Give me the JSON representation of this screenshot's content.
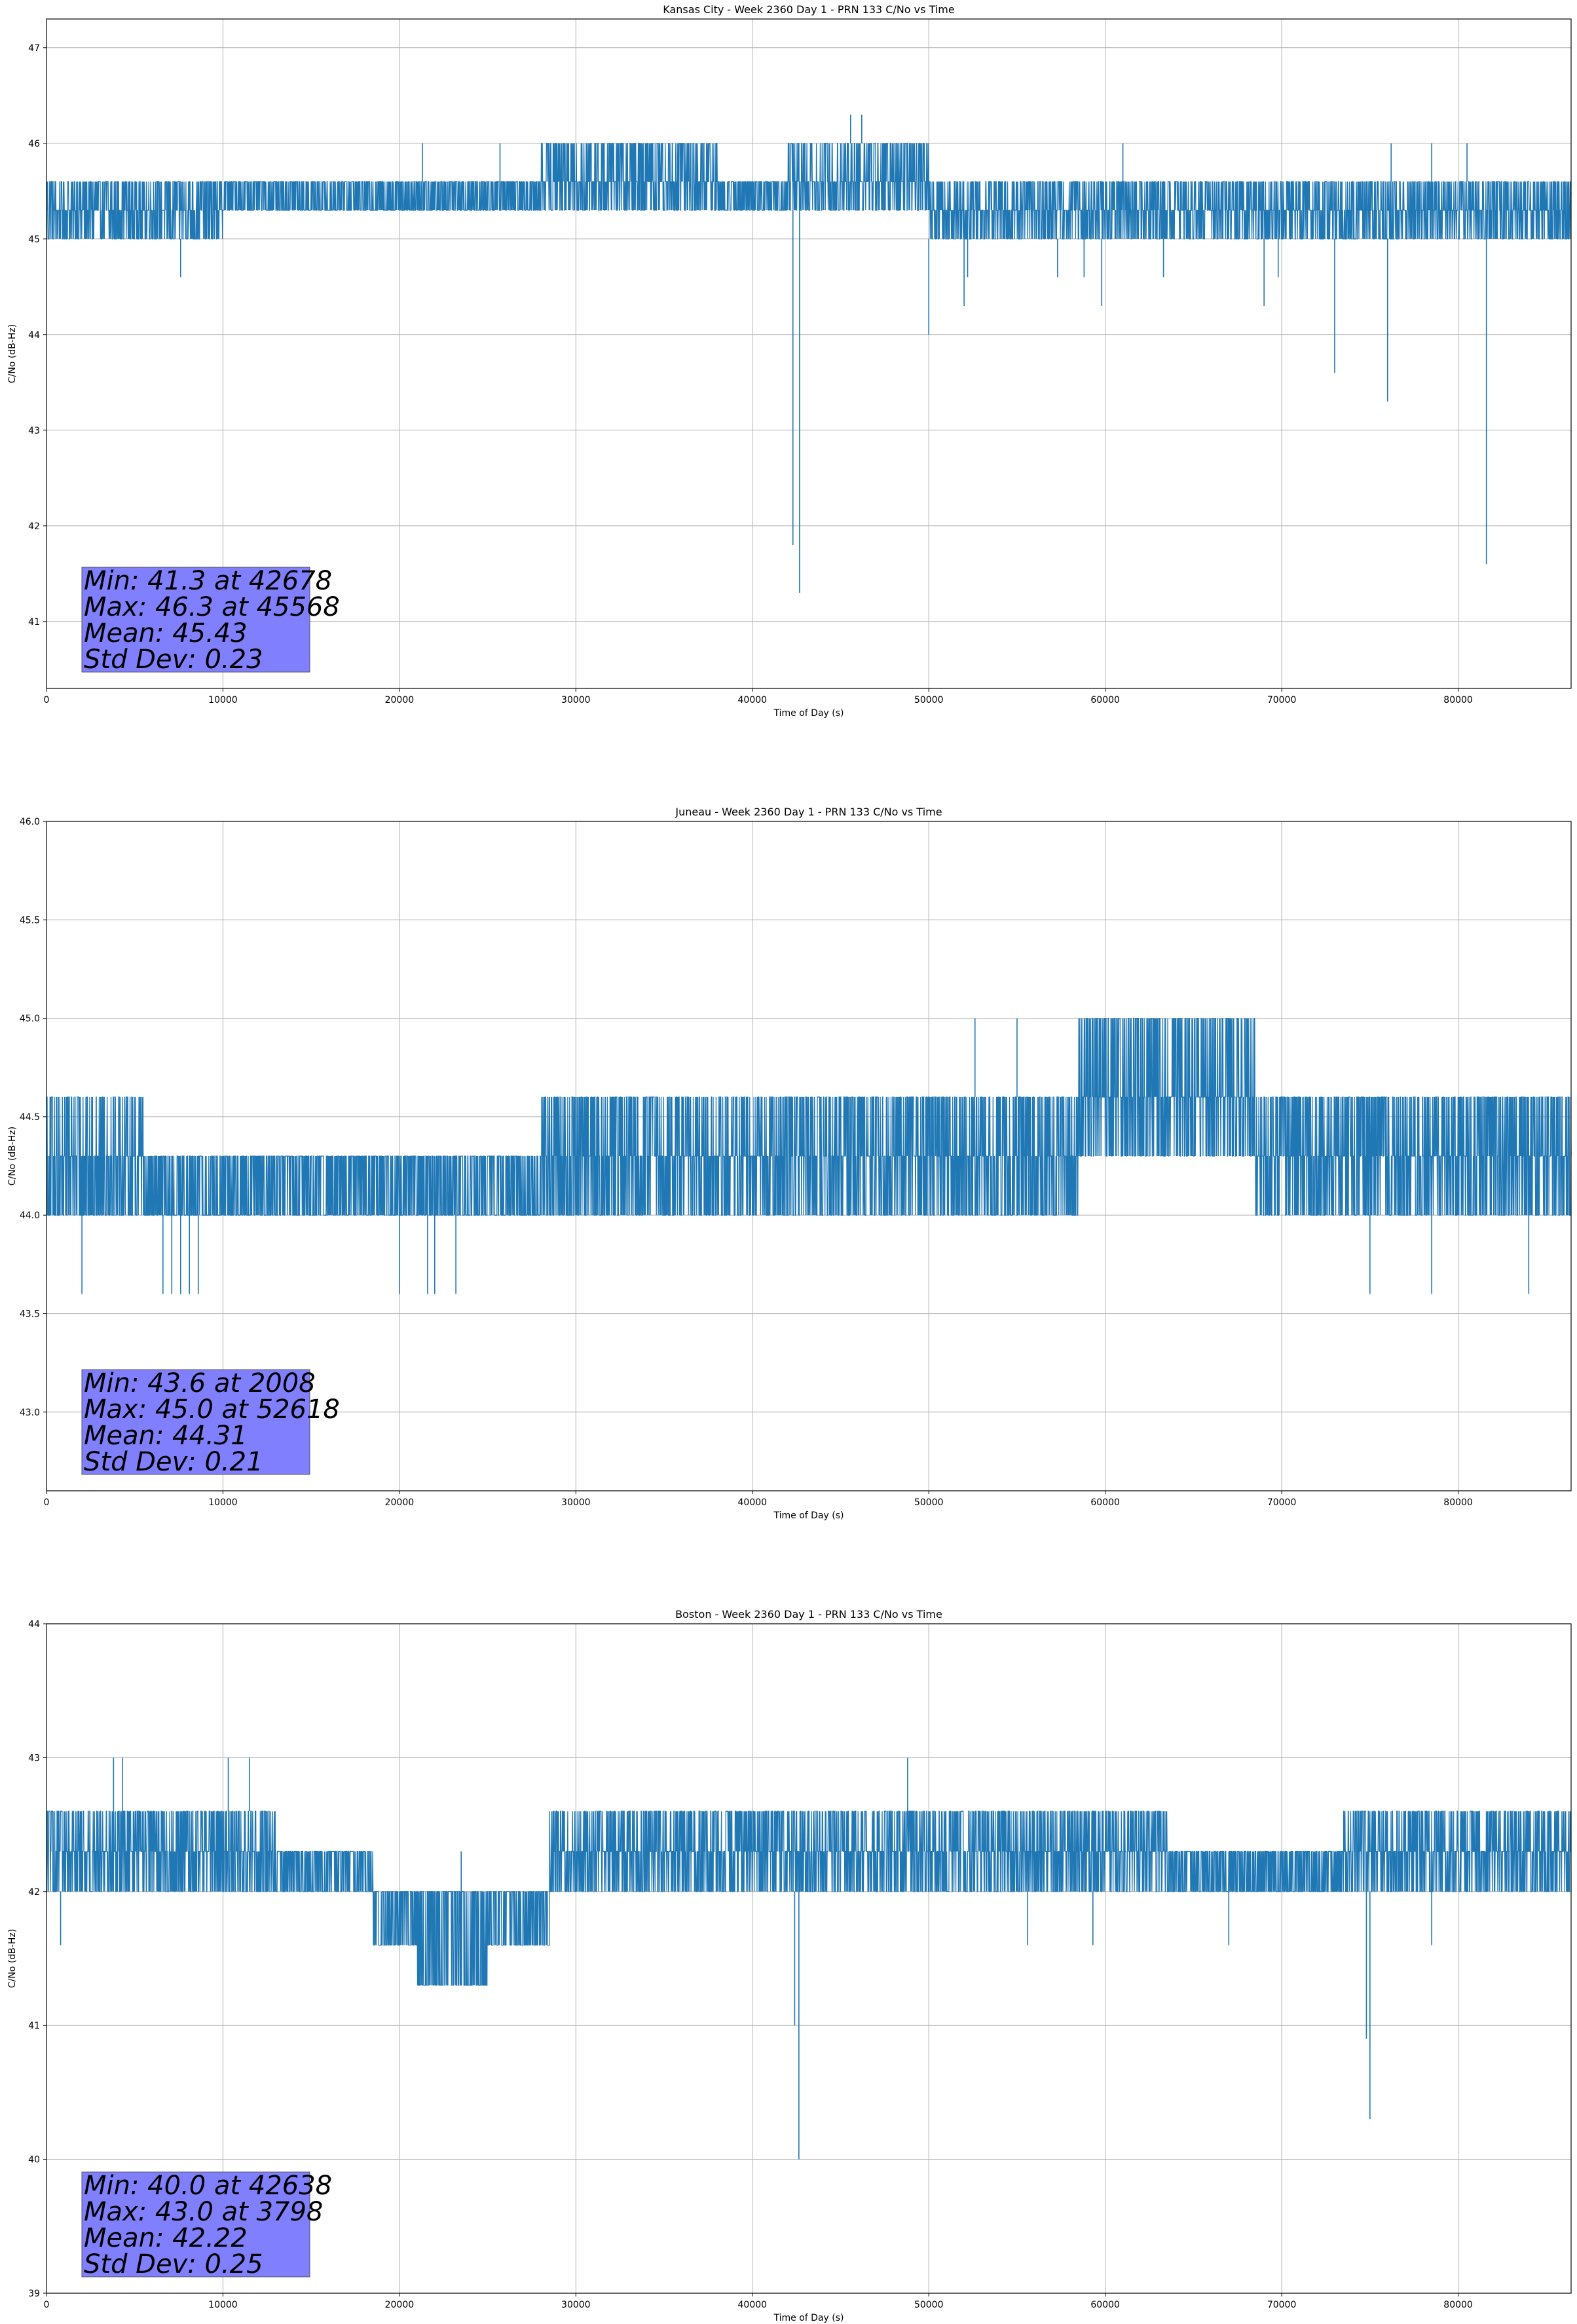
{
  "figure": {
    "series_color": "#1f77b4",
    "stats_box_color": "#8080ff",
    "grid_color": "#b0b0b0"
  },
  "chart_data": [
    {
      "type": "line",
      "title": "Kansas City - Week 2360 Day 1 - PRN 133 C/No vs Time",
      "xlabel": "Time of Day (s)",
      "ylabel": "C/No (dB-Hz)",
      "xlim": [
        0,
        86400
      ],
      "ylim": [
        40.3,
        47.3
      ],
      "xticks": [
        0,
        10000,
        20000,
        30000,
        40000,
        50000,
        60000,
        70000,
        80000
      ],
      "yticks": [
        41,
        42,
        43,
        44,
        45,
        46,
        47
      ],
      "ytick_labels": [
        "41",
        "42",
        "43",
        "44",
        "45",
        "46",
        "47"
      ],
      "grid": true,
      "stats": [
        "Min: 41.3 at 42678",
        "Max: 46.3 at 45568",
        "Mean: 45.43",
        "Std Dev: 0.23"
      ],
      "series": [
        {
          "name": "C/No",
          "base_levels": [
            45.0,
            45.3,
            45.6
          ],
          "segments": [
            {
              "x0": 0,
              "x1": 10000,
              "low": 45.0,
              "high": 45.6
            },
            {
              "x0": 10000,
              "x1": 21000,
              "low": 45.3,
              "high": 45.6
            },
            {
              "x0": 21000,
              "x1": 28000,
              "low": 45.3,
              "high": 45.6
            },
            {
              "x0": 28000,
              "x1": 38000,
              "low": 45.3,
              "high": 46.0
            },
            {
              "x0": 38000,
              "x1": 42000,
              "low": 45.3,
              "high": 45.6
            },
            {
              "x0": 42000,
              "x1": 50000,
              "low": 45.3,
              "high": 46.0
            },
            {
              "x0": 50000,
              "x1": 61500,
              "low": 45.0,
              "high": 45.6
            },
            {
              "x0": 61500,
              "x1": 86400,
              "low": 45.0,
              "high": 45.6
            }
          ],
          "spikes": [
            {
              "x": 7600,
              "y": 44.6
            },
            {
              "x": 21300,
              "y": 46.0
            },
            {
              "x": 25700,
              "y": 46.0
            },
            {
              "x": 42300,
              "y": 41.8
            },
            {
              "x": 42678,
              "y": 41.3
            },
            {
              "x": 45568,
              "y": 46.3
            },
            {
              "x": 46200,
              "y": 46.3
            },
            {
              "x": 50000,
              "y": 44.0
            },
            {
              "x": 52000,
              "y": 44.3
            },
            {
              "x": 52200,
              "y": 44.6
            },
            {
              "x": 57300,
              "y": 44.6
            },
            {
              "x": 58800,
              "y": 44.6
            },
            {
              "x": 59800,
              "y": 44.3
            },
            {
              "x": 61000,
              "y": 46.0
            },
            {
              "x": 63300,
              "y": 44.6
            },
            {
              "x": 69000,
              "y": 44.3
            },
            {
              "x": 69800,
              "y": 44.6
            },
            {
              "x": 73000,
              "y": 43.6
            },
            {
              "x": 76000,
              "y": 43.3
            },
            {
              "x": 76200,
              "y": 46.0
            },
            {
              "x": 78500,
              "y": 46.0
            },
            {
              "x": 80500,
              "y": 46.0
            },
            {
              "x": 81600,
              "y": 41.6
            }
          ]
        }
      ]
    },
    {
      "type": "line",
      "title": "Juneau - Week 2360 Day 1 - PRN 133 C/No vs Time",
      "xlabel": "Time of Day (s)",
      "ylabel": "C/No (dB-Hz)",
      "xlim": [
        0,
        86400
      ],
      "ylim": [
        42.6,
        46.0
      ],
      "xticks": [
        0,
        10000,
        20000,
        30000,
        40000,
        50000,
        60000,
        70000,
        80000
      ],
      "yticks": [
        43.0,
        43.5,
        44.0,
        44.5,
        45.0,
        45.5,
        46.0
      ],
      "ytick_labels": [
        "43.0",
        "43.5",
        "44.0",
        "44.5",
        "45.0",
        "45.5",
        "46.0"
      ],
      "grid": true,
      "stats": [
        "Min: 43.6 at 2008",
        "Max: 45.0 at 52618",
        "Mean: 44.31",
        "Std Dev: 0.21"
      ],
      "series": [
        {
          "name": "C/No",
          "base_levels": [
            44.0,
            44.3,
            44.6
          ],
          "segments": [
            {
              "x0": 0,
              "x1": 5500,
              "low": 44.0,
              "high": 44.6
            },
            {
              "x0": 5500,
              "x1": 25000,
              "low": 44.0,
              "high": 44.3
            },
            {
              "x0": 25000,
              "x1": 28000,
              "low": 44.0,
              "high": 44.3
            },
            {
              "x0": 28000,
              "x1": 58500,
              "low": 44.0,
              "high": 44.6
            },
            {
              "x0": 58500,
              "x1": 68500,
              "low": 44.3,
              "high": 45.0
            },
            {
              "x0": 68500,
              "x1": 86400,
              "low": 44.0,
              "high": 44.6
            }
          ],
          "spikes": [
            {
              "x": 2008,
              "y": 43.6
            },
            {
              "x": 6600,
              "y": 43.6
            },
            {
              "x": 7100,
              "y": 43.6
            },
            {
              "x": 7600,
              "y": 43.6
            },
            {
              "x": 8100,
              "y": 43.6
            },
            {
              "x": 8600,
              "y": 43.6
            },
            {
              "x": 20000,
              "y": 43.6
            },
            {
              "x": 21600,
              "y": 43.6
            },
            {
              "x": 22000,
              "y": 43.6
            },
            {
              "x": 23200,
              "y": 43.6
            },
            {
              "x": 52618,
              "y": 45.0
            },
            {
              "x": 55000,
              "y": 45.0
            },
            {
              "x": 75000,
              "y": 43.6
            },
            {
              "x": 78500,
              "y": 43.6
            },
            {
              "x": 84000,
              "y": 43.6
            }
          ]
        }
      ]
    },
    {
      "type": "line",
      "title": "Boston - Week 2360 Day 1 - PRN 133 C/No vs Time",
      "xlabel": "Time of Day (s)",
      "ylabel": "C/No (dB-Hz)",
      "xlim": [
        0,
        86400
      ],
      "ylim": [
        39,
        44
      ],
      "xticks": [
        0,
        10000,
        20000,
        30000,
        40000,
        50000,
        60000,
        70000,
        80000
      ],
      "yticks": [
        39,
        40,
        41,
        42,
        43,
        44
      ],
      "ytick_labels": [
        "39",
        "40",
        "41",
        "42",
        "43",
        "44"
      ],
      "grid": true,
      "stats": [
        "Min: 40.0 at 42638",
        "Max: 43.0 at 3798",
        "Mean: 42.22",
        "Std Dev: 0.25"
      ],
      "series": [
        {
          "name": "C/No",
          "base_levels": [
            42.0,
            42.3,
            42.6
          ],
          "segments": [
            {
              "x0": 0,
              "x1": 13000,
              "low": 42.0,
              "high": 42.6
            },
            {
              "x0": 13000,
              "x1": 18500,
              "low": 42.0,
              "high": 42.3
            },
            {
              "x0": 18500,
              "x1": 21000,
              "low": 41.6,
              "high": 42.0
            },
            {
              "x0": 21000,
              "x1": 25000,
              "low": 41.3,
              "high": 42.0
            },
            {
              "x0": 25000,
              "x1": 28500,
              "low": 41.6,
              "high": 42.0
            },
            {
              "x0": 28500,
              "x1": 47000,
              "low": 42.0,
              "high": 42.6
            },
            {
              "x0": 47000,
              "x1": 63500,
              "low": 42.0,
              "high": 42.6
            },
            {
              "x0": 63500,
              "x1": 73500,
              "low": 42.0,
              "high": 42.3
            },
            {
              "x0": 73500,
              "x1": 86400,
              "low": 42.0,
              "high": 42.6
            }
          ],
          "spikes": [
            {
              "x": 800,
              "y": 41.6
            },
            {
              "x": 3798,
              "y": 43.0
            },
            {
              "x": 4300,
              "y": 43.0
            },
            {
              "x": 10300,
              "y": 43.0
            },
            {
              "x": 11500,
              "y": 43.0
            },
            {
              "x": 23500,
              "y": 42.3
            },
            {
              "x": 42400,
              "y": 41.0
            },
            {
              "x": 42638,
              "y": 40.0
            },
            {
              "x": 48800,
              "y": 43.0
            },
            {
              "x": 55600,
              "y": 41.6
            },
            {
              "x": 59300,
              "y": 41.6
            },
            {
              "x": 67000,
              "y": 41.6
            },
            {
              "x": 74800,
              "y": 40.9
            },
            {
              "x": 75000,
              "y": 40.3
            },
            {
              "x": 78500,
              "y": 41.6
            }
          ]
        }
      ]
    }
  ]
}
